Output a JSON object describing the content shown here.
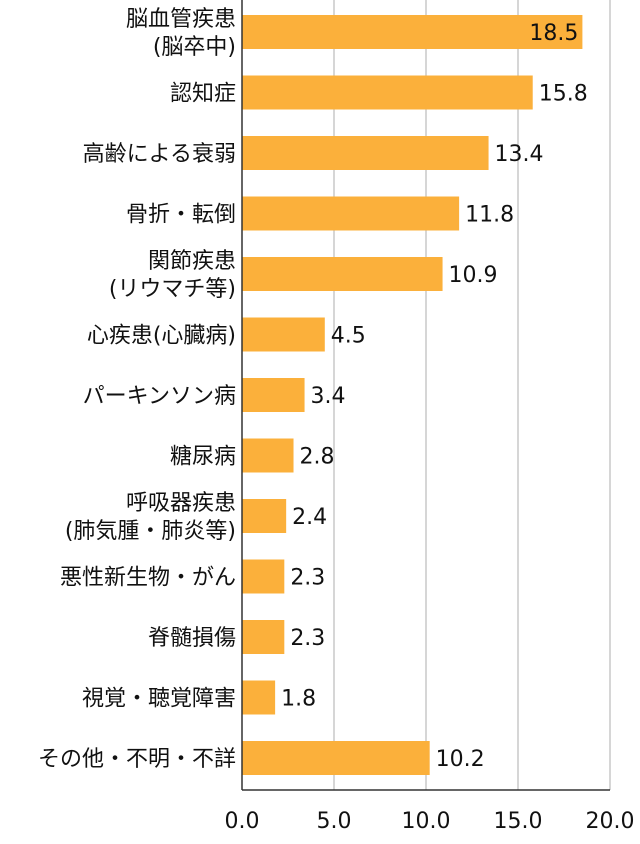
{
  "chart_data": {
    "type": "bar",
    "orientation": "horizontal",
    "categories": [
      [
        "脳血管疾患",
        "(脳卒中)"
      ],
      [
        "認知症"
      ],
      [
        "高齢による衰弱"
      ],
      [
        "骨折・転倒"
      ],
      [
        "関節疾患",
        "(リウマチ等)"
      ],
      [
        "心疾患(心臓病)"
      ],
      [
        "パーキンソン病"
      ],
      [
        "糖尿病"
      ],
      [
        "呼吸器疾患",
        "(肺気腫・肺炎等)"
      ],
      [
        "悪性新生物・がん"
      ],
      [
        "脊髄損傷"
      ],
      [
        "視覚・聴覚障害"
      ],
      [
        "その他・不明・不詳"
      ]
    ],
    "values": [
      18.5,
      15.8,
      13.4,
      11.8,
      10.9,
      4.5,
      3.4,
      2.8,
      2.4,
      2.3,
      2.3,
      1.8,
      10.2
    ],
    "value_labels": [
      "18.5",
      "15.8",
      "13.4",
      "11.8",
      "10.9",
      "4.5",
      "3.4",
      "2.8",
      "2.4",
      "2.3",
      "2.3",
      "1.8",
      "10.2"
    ],
    "xlim": [
      0,
      20
    ],
    "xticks": [
      "0.0",
      "5.0",
      "10.0",
      "15.0",
      "20.0"
    ],
    "xtick_values": [
      0,
      5,
      10,
      15,
      20
    ],
    "grid": "vertical",
    "bar_color": "#FBB03B",
    "grid_color": "#C8C8C8",
    "axis_color": "#333333"
  }
}
